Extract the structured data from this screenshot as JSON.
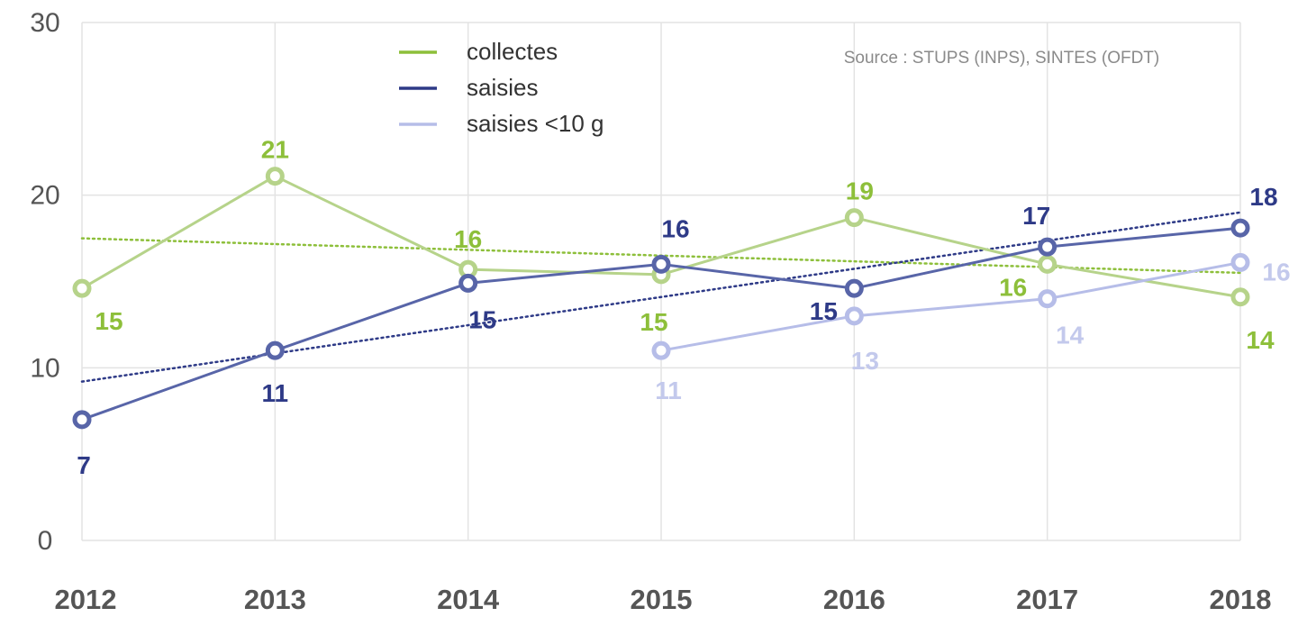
{
  "chart_data": {
    "type": "line",
    "categories": [
      "2012",
      "2013",
      "2014",
      "2015",
      "2016",
      "2017",
      "2018"
    ],
    "ylim": [
      0,
      30
    ],
    "yticks": [
      0,
      10,
      20,
      30
    ],
    "grid": true,
    "legend_position": "top-center",
    "source": "Source : STUPS (INPS), SINTES (OFDT)",
    "series": [
      {
        "name": "collectes",
        "color": "#8dbf3a",
        "line_color": "#b6d38a",
        "values": [
          14.6,
          21.1,
          15.7,
          15.4,
          18.7,
          16.0,
          14.1
        ],
        "labels": [
          "15",
          "21",
          "16",
          "15",
          "19",
          "16",
          "14"
        ],
        "trend": [
          17.5,
          15.5
        ]
      },
      {
        "name": "saisies",
        "color": "#2e3a87",
        "line_color": "#5865a8",
        "values": [
          7.0,
          11.0,
          14.9,
          16.0,
          14.6,
          17.0,
          18.1
        ],
        "labels": [
          "7",
          "11",
          "15",
          "16",
          "15",
          "17",
          "18"
        ],
        "trend": [
          9.2,
          19.0
        ]
      },
      {
        "name": "saisies <10 g",
        "color": "#c3c9ec",
        "line_color": "#b6bde8",
        "values": [
          null,
          null,
          null,
          11.0,
          13.0,
          14.0,
          16.1
        ],
        "labels": [
          "",
          "",
          "",
          "11",
          "13",
          "14",
          "16"
        ]
      }
    ]
  }
}
